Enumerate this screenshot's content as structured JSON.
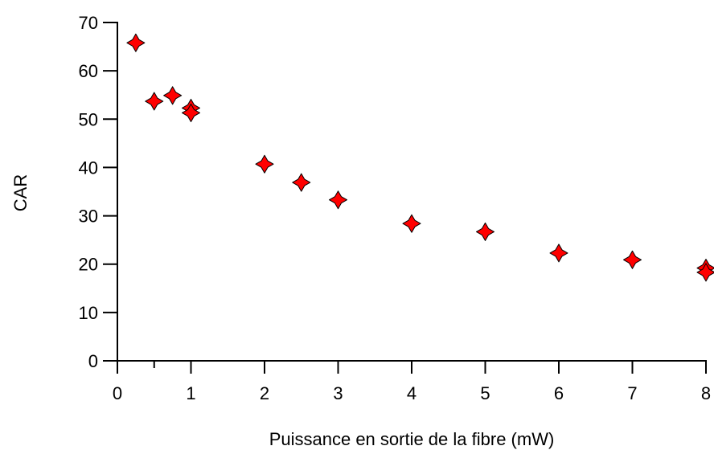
{
  "chart_data": {
    "type": "scatter",
    "title": "",
    "xlabel": "Puissance en sortie de la fibre (mW)",
    "ylabel": "CAR",
    "xlim": [
      0,
      8
    ],
    "ylim": [
      0,
      70
    ],
    "xticks": [
      0,
      1,
      2,
      3,
      4,
      5,
      6,
      7,
      8
    ],
    "yticks": [
      0,
      10,
      20,
      30,
      40,
      50,
      60,
      70
    ],
    "grid": false,
    "marker": "four-point-star",
    "marker_color": "#ff0000",
    "series": [
      {
        "x": [
          0.25,
          0.5,
          0.75,
          1.0,
          1.0,
          2.0,
          2.5,
          3.0,
          4.0,
          5.0,
          6.0,
          7.0,
          8.0,
          8.0
        ],
        "y": [
          65.8,
          53.7,
          54.9,
          52.3,
          51.3,
          40.7,
          36.9,
          33.3,
          28.4,
          26.7,
          22.3,
          20.9,
          19.2,
          18.3
        ]
      }
    ]
  }
}
